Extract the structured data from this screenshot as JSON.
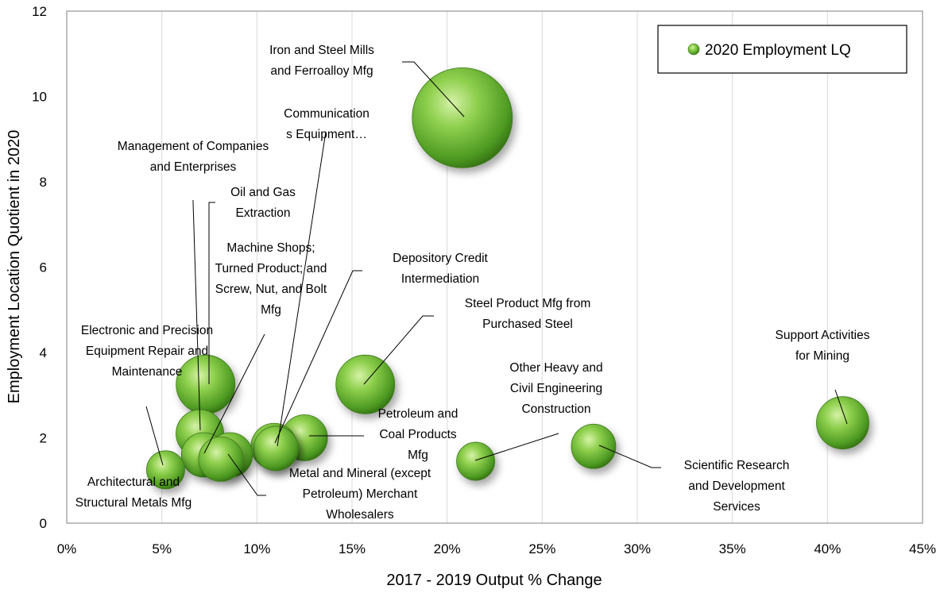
{
  "chart_data": {
    "type": "bubble",
    "xlabel": "2017 - 2019 Output % Change",
    "ylabel": "Employment Location Quotient in 2020",
    "xlim": [
      0,
      45
    ],
    "ylim": [
      0,
      12
    ],
    "x_ticks": [
      "0%",
      "5%",
      "10%",
      "15%",
      "20%",
      "25%",
      "30%",
      "35%",
      "40%",
      "45%"
    ],
    "y_ticks": [
      "0",
      "2",
      "4",
      "6",
      "8",
      "10",
      "12"
    ],
    "grid": "vertical",
    "legend": {
      "position": "top-right",
      "entries": [
        "2020 Employment LQ"
      ]
    },
    "series": [
      {
        "name": "2020 Employment LQ",
        "color": "#6ab82e",
        "points": [
          {
            "label": [
              "Iron and Steel Mills",
              "and Ferroalloy Mfg"
            ],
            "x": 20.8,
            "y": 9.5,
            "size": 9.5
          },
          {
            "label": [
              "Communication",
              "s Equipment…"
            ],
            "x": 10.9,
            "y": 1.8,
            "size": 1.8
          },
          {
            "label": [
              "Management of Companies",
              "and Enterprises"
            ],
            "x": 7.0,
            "y": 2.1,
            "size": 2.1
          },
          {
            "label": [
              "Oil and Gas",
              "Extraction"
            ],
            "x": 7.3,
            "y": 3.25,
            "size": 3.25
          },
          {
            "label": [
              "Machine Shops;",
              "Turned Product; and",
              "Screw, Nut, and Bolt",
              "Mfg"
            ],
            "x": 7.2,
            "y": 1.6,
            "size": 1.6
          },
          {
            "label": [
              "Depository Credit",
              "Intermediation"
            ],
            "x": 11.0,
            "y": 1.75,
            "size": 1.75
          },
          {
            "label": [
              "Steel Product Mfg from",
              "Purchased Steel"
            ],
            "x": 15.7,
            "y": 3.25,
            "size": 3.25
          },
          {
            "label": [
              "Electronic and Precision",
              "Equipment Repair and",
              "Maintenance"
            ],
            "x": 5.2,
            "y": 1.25,
            "size": 1.25
          },
          {
            "label": [
              "Architectural and",
              "Structural Metals Mfg"
            ],
            "x": 8.6,
            "y": 1.6,
            "size": 1.6
          },
          {
            "label": [
              "Petroleum and",
              "Coal Products",
              "Mfg"
            ],
            "x": 12.5,
            "y": 2.0,
            "size": 2.0
          },
          {
            "label": [
              "Metal and Mineral (except",
              "Petroleum) Merchant",
              "Wholesalers"
            ],
            "x": 8.1,
            "y": 1.5,
            "size": 1.5
          },
          {
            "label": [
              "Other Heavy and",
              "Civil Engineering",
              "Construction"
            ],
            "x": 21.5,
            "y": 1.45,
            "size": 1.45
          },
          {
            "label": [
              "Scientific Research",
              "and Development",
              "Services"
            ],
            "x": 27.7,
            "y": 1.8,
            "size": 1.8
          },
          {
            "label": [
              "Support Activities",
              "for Mining"
            ],
            "x": 40.8,
            "y": 2.35,
            "size": 2.35
          }
        ]
      }
    ]
  }
}
